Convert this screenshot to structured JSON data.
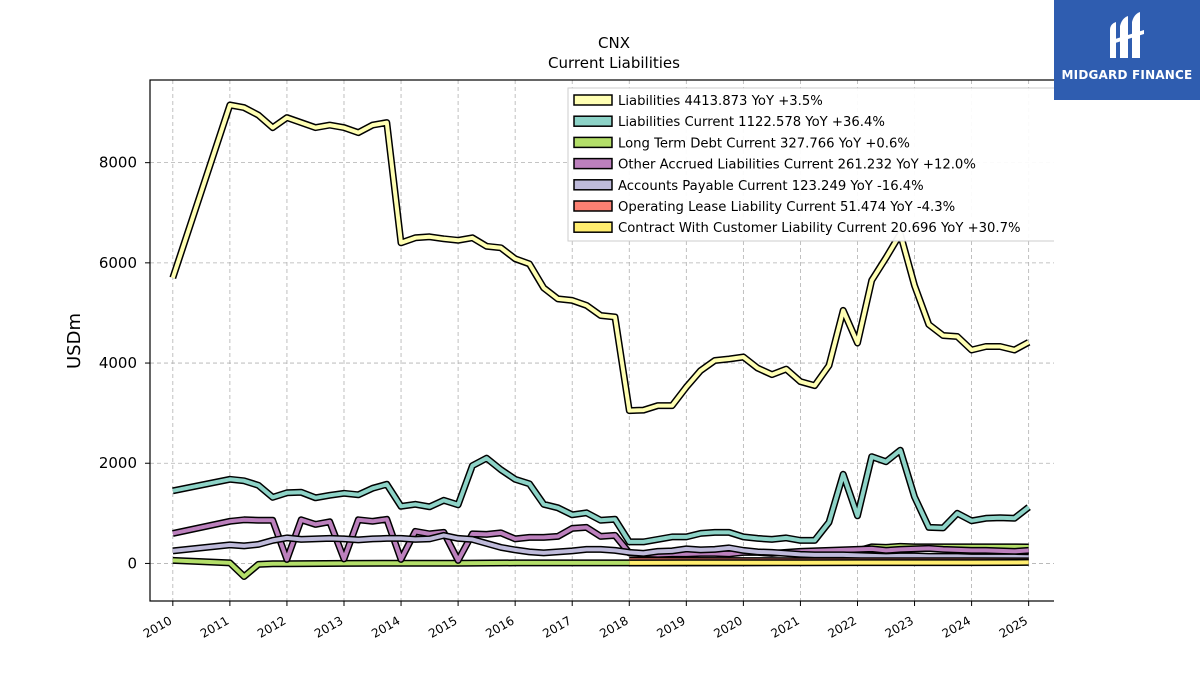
{
  "brand": {
    "name": "MIDGARD FINANCE",
    "logo_icon": "midgard-m-logo-icon",
    "bg_color": "#2f5db0"
  },
  "chart_data": {
    "type": "line",
    "title": "CNX",
    "subtitle": "Current  Liabilities",
    "ylabel": "USDm",
    "xlabel": "",
    "xlim": [
      2009.6,
      2025.9
    ],
    "ylim": [
      -750,
      9650
    ],
    "yticks": [
      0,
      2000,
      4000,
      6000,
      8000
    ],
    "xticks": [
      "2010",
      "2011",
      "2012",
      "2013",
      "2014",
      "2015",
      "2016",
      "2017",
      "2018",
      "2019",
      "2020",
      "2021",
      "2022",
      "2023",
      "2024",
      "2025"
    ],
    "grid": true,
    "legend_position": "top-right",
    "series": [
      {
        "name": "Liabilities",
        "legend": "Liabilities  4413.873 YoY +3.5%",
        "color": "#ffffb3",
        "x": [
          2010.0,
          2011.0,
          2011.25,
          2011.5,
          2011.75,
          2012.0,
          2012.25,
          2012.5,
          2012.75,
          2013.0,
          2013.25,
          2013.5,
          2013.75,
          2014.0,
          2014.25,
          2014.5,
          2014.75,
          2015.0,
          2015.25,
          2015.5,
          2015.75,
          2016.0,
          2016.25,
          2016.5,
          2016.75,
          2017.0,
          2017.25,
          2017.5,
          2017.75,
          2018.0,
          2018.25,
          2018.5,
          2018.75,
          2019.0,
          2019.25,
          2019.5,
          2019.75,
          2020.0,
          2020.25,
          2020.5,
          2020.75,
          2021.0,
          2021.25,
          2021.5,
          2021.75,
          2022.0,
          2022.25,
          2022.5,
          2022.75,
          2023.0,
          2023.25,
          2023.5,
          2023.75,
          2024.0,
          2024.25,
          2024.5,
          2024.75,
          2025.0
        ],
        "y": [
          5700,
          9150,
          9100,
          8950,
          8700,
          8900,
          8800,
          8700,
          8750,
          8700,
          8600,
          8750,
          8800,
          6400,
          6500,
          6520,
          6480,
          6450,
          6500,
          6330,
          6300,
          6080,
          5980,
          5500,
          5280,
          5250,
          5150,
          4950,
          4920,
          3050,
          3060,
          3150,
          3150,
          3520,
          3850,
          4050,
          4080,
          4120,
          3900,
          3770,
          3880,
          3630,
          3550,
          3950,
          5050,
          4400,
          5650,
          6100,
          6580,
          5550,
          4770,
          4550,
          4530,
          4260,
          4330,
          4330,
          4260,
          4414
        ]
      },
      {
        "name": "Liabilities Current",
        "legend": "Liabilities Current  1122.578 YoY +36.4%",
        "color": "#8dd3c7",
        "x": [
          2010.0,
          2011.0,
          2011.25,
          2011.5,
          2011.75,
          2012.0,
          2012.25,
          2012.5,
          2012.75,
          2013.0,
          2013.25,
          2013.5,
          2013.75,
          2014.0,
          2014.25,
          2014.5,
          2014.75,
          2015.0,
          2015.25,
          2015.5,
          2015.75,
          2016.0,
          2016.25,
          2016.5,
          2016.75,
          2017.0,
          2017.25,
          2017.5,
          2017.75,
          2018.0,
          2018.25,
          2018.5,
          2018.75,
          2019.0,
          2019.25,
          2019.5,
          2019.75,
          2020.0,
          2020.25,
          2020.5,
          2020.75,
          2021.0,
          2021.25,
          2021.5,
          2021.75,
          2022.0,
          2022.25,
          2022.5,
          2022.75,
          2023.0,
          2023.25,
          2023.5,
          2023.75,
          2024.0,
          2024.25,
          2024.5,
          2024.75,
          2025.0
        ],
        "y": [
          1450,
          1680,
          1650,
          1560,
          1320,
          1410,
          1420,
          1310,
          1360,
          1400,
          1370,
          1500,
          1580,
          1140,
          1180,
          1130,
          1260,
          1170,
          1950,
          2100,
          1870,
          1680,
          1590,
          1180,
          1110,
          970,
          1010,
          860,
          880,
          430,
          430,
          480,
          530,
          530,
          600,
          620,
          620,
          530,
          500,
          480,
          510,
          460,
          460,
          820,
          1780,
          950,
          2130,
          2030,
          2260,
          1330,
          720,
          710,
          1000,
          850,
          900,
          910,
          900,
          1123
        ]
      },
      {
        "name": "Long Term Debt Current",
        "legend": "Long Term Debt Current  327.766 YoY +0.6%",
        "color": "#b3de69",
        "x": [
          2010.0,
          2011.0,
          2011.25,
          2011.5,
          2011.75,
          2012.0,
          2013.0,
          2014.0,
          2015.0,
          2016.0,
          2017.0,
          2018.0,
          2019.0,
          2020.0,
          2021.0,
          2021.5,
          2021.75,
          2022.0,
          2022.25,
          2022.5,
          2022.75,
          2023.0,
          2023.25,
          2023.5,
          2023.75,
          2024.0,
          2024.25,
          2024.5,
          2024.75,
          2025.0
        ],
        "y": [
          60,
          10,
          -260,
          -20,
          -5,
          -5,
          0,
          5,
          5,
          10,
          10,
          10,
          10,
          15,
          20,
          50,
          150,
          250,
          330,
          320,
          340,
          330,
          330,
          330,
          330,
          330,
          330,
          330,
          330,
          328
        ]
      },
      {
        "name": "Other Accrued Liabilities Current",
        "legend": "Other Accrued Liabilities Current  261.232 YoY +12.0%",
        "color": "#bc80bd",
        "x": [
          2010.0,
          2011.0,
          2011.25,
          2011.5,
          2011.75,
          2012.0,
          2012.25,
          2012.5,
          2012.75,
          2013.0,
          2013.25,
          2013.5,
          2013.75,
          2014.0,
          2014.25,
          2014.5,
          2014.75,
          2015.0,
          2015.25,
          2015.5,
          2015.75,
          2016.0,
          2016.25,
          2016.5,
          2016.75,
          2017.0,
          2017.25,
          2017.5,
          2017.75,
          2018.0,
          2018.25,
          2018.5,
          2018.75,
          2019.0,
          2019.25,
          2019.5,
          2019.75,
          2020.0,
          2020.25,
          2020.5,
          2020.75,
          2021.0,
          2021.25,
          2021.5,
          2021.75,
          2022.0,
          2022.25,
          2022.5,
          2022.75,
          2023.0,
          2023.25,
          2023.5,
          2023.75,
          2024.0,
          2024.25,
          2024.5,
          2024.75,
          2025.0
        ],
        "y": [
          600,
          840,
          870,
          860,
          860,
          80,
          870,
          780,
          830,
          90,
          870,
          840,
          880,
          80,
          640,
          590,
          620,
          60,
          590,
          580,
          610,
          490,
          520,
          520,
          540,
          700,
          720,
          540,
          560,
          210,
          190,
          180,
          190,
          190,
          200,
          200,
          190,
          220,
          220,
          200,
          220,
          240,
          250,
          260,
          270,
          280,
          290,
          260,
          280,
          290,
          300,
          280,
          270,
          260,
          260,
          250,
          240,
          261
        ]
      },
      {
        "name": "Accounts Payable Current",
        "legend": "Accounts Payable Current  123.249 YoY -16.4%",
        "color": "#bebada",
        "x": [
          2010.0,
          2011.0,
          2011.25,
          2011.5,
          2011.75,
          2012.0,
          2012.25,
          2012.5,
          2012.75,
          2013.0,
          2013.25,
          2013.5,
          2013.75,
          2014.0,
          2014.25,
          2014.5,
          2014.75,
          2015.0,
          2015.25,
          2015.5,
          2015.75,
          2016.0,
          2016.25,
          2016.5,
          2016.75,
          2017.0,
          2017.25,
          2017.5,
          2017.75,
          2018.0,
          2018.25,
          2018.5,
          2018.75,
          2019.0,
          2019.25,
          2019.5,
          2019.75,
          2020.0,
          2020.25,
          2020.5,
          2020.75,
          2021.0,
          2021.25,
          2021.5,
          2021.75,
          2022.0,
          2022.25,
          2022.5,
          2022.75,
          2023.0,
          2023.25,
          2023.5,
          2023.75,
          2024.0,
          2024.25,
          2024.5,
          2024.75,
          2025.0
        ],
        "y": [
          250,
          370,
          350,
          380,
          460,
          510,
          480,
          490,
          500,
          490,
          470,
          490,
          500,
          500,
          480,
          490,
          560,
          500,
          480,
          400,
          320,
          270,
          230,
          210,
          230,
          250,
          280,
          280,
          260,
          220,
          200,
          240,
          250,
          290,
          270,
          280,
          310,
          260,
          230,
          220,
          200,
          180,
          170,
          170,
          170,
          160,
          150,
          140,
          150,
          150,
          140,
          140,
          140,
          130,
          130,
          130,
          130,
          123
        ]
      },
      {
        "name": "Operating Lease Liability Current",
        "legend": "Operating Lease Liability Current  51.474 YoY -4.3%",
        "color": "#fb8072",
        "x": [
          2018.0,
          2019.0,
          2020.0,
          2021.0,
          2022.0,
          2023.0,
          2024.0,
          2025.0
        ],
        "y": [
          60,
          58,
          56,
          55,
          54,
          53,
          52,
          51
        ]
      },
      {
        "name": "Contract With Customer Liability Current",
        "legend": "Contract With Customer Liability Current  20.696 YoY +30.7%",
        "color": "#ffed6f",
        "x": [
          2018.0,
          2019.0,
          2020.0,
          2021.0,
          2022.0,
          2023.0,
          2024.0,
          2025.0
        ],
        "y": [
          10,
          12,
          14,
          15,
          16,
          16,
          16,
          21
        ]
      }
    ]
  }
}
